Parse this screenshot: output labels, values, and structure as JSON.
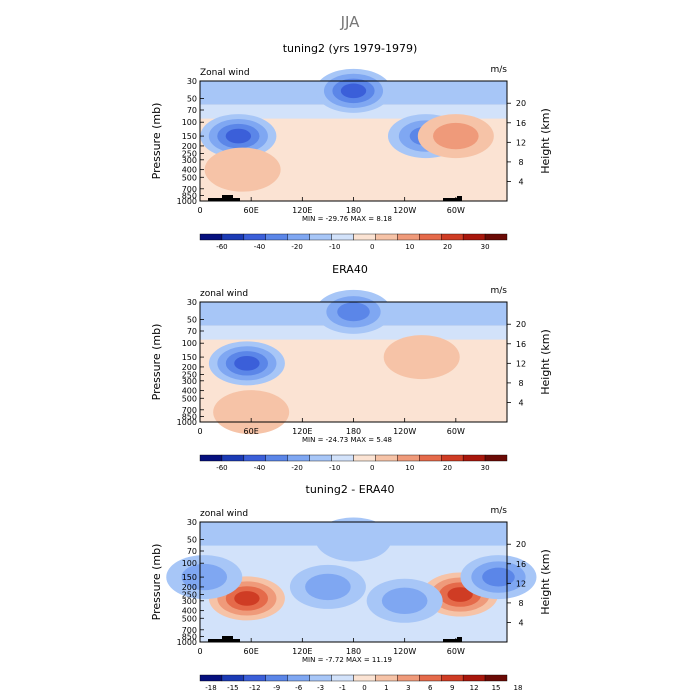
{
  "page_title": "JJA",
  "chart_data": [
    {
      "type": "heatmap",
      "title": "tuning2 (yrs 1979-1979)",
      "top_left_label": "Zonal wind",
      "top_right_label": "m/s",
      "ylabel": "Pressure (mb)",
      "y2label": "Height (km)",
      "x_ticks": [
        "0",
        "60E",
        "120E",
        "180",
        "120W",
        "60W"
      ],
      "x_range_deg_east": [
        0,
        360
      ],
      "y_ticks": [
        "30",
        "50",
        "70",
        "100",
        "150",
        "200",
        "250",
        "300",
        "400",
        "500",
        "700",
        "850",
        "1000"
      ],
      "y_range_mb": [
        30,
        1000
      ],
      "y_scale": "log",
      "y2_ticks": [
        "20",
        "16",
        "12",
        "8",
        "4"
      ],
      "stats": "MIN =  -29.76   MAX =   8.18",
      "colorbar_labels": [
        "-60",
        "-40",
        "-20",
        "-10",
        "0",
        "10",
        "20",
        "30"
      ],
      "colorbar_colors": [
        "#06107e",
        "#1b3bb5",
        "#3b5fd9",
        "#5b86e8",
        "#7fa7f2",
        "#a7c6f7",
        "#d2e2fa",
        "#fbe3d3",
        "#f6c3a7",
        "#ef9a7a",
        "#e56a4a",
        "#cf3c24",
        "#a8170c",
        "#6b0a06"
      ],
      "blobs": [
        {
          "lon": 45,
          "p": 150,
          "value": -29.76
        },
        {
          "lon": 50,
          "p": 400,
          "value": 6
        },
        {
          "lon": 265,
          "p": 150,
          "value": -12
        },
        {
          "lon": 300,
          "p": 150,
          "value": 8.18
        },
        {
          "lon": 180,
          "p": 40,
          "value": -15
        }
      ]
    },
    {
      "type": "heatmap",
      "title": "ERA40",
      "top_left_label": "zonal wind",
      "top_right_label": "m/s",
      "ylabel": "Pressure (mb)",
      "y2label": "Height (km)",
      "x_ticks": [
        "0",
        "60E",
        "120E",
        "180",
        "120W",
        "60W"
      ],
      "x_range_deg_east": [
        0,
        360
      ],
      "y_ticks": [
        "30",
        "50",
        "70",
        "100",
        "150",
        "200",
        "250",
        "300",
        "400",
        "500",
        "700",
        "850",
        "1000"
      ],
      "y_range_mb": [
        30,
        1000
      ],
      "y_scale": "log",
      "y2_ticks": [
        "20",
        "16",
        "12",
        "8",
        "4"
      ],
      "stats": "MIN =  -24.73   MAX =   5.48",
      "colorbar_labels": [
        "-60",
        "-40",
        "-20",
        "-10",
        "0",
        "10",
        "20",
        "30"
      ],
      "colorbar_colors": [
        "#06107e",
        "#1b3bb5",
        "#3b5fd9",
        "#5b86e8",
        "#7fa7f2",
        "#a7c6f7",
        "#d2e2fa",
        "#fbe3d3",
        "#f6c3a7",
        "#ef9a7a",
        "#e56a4a",
        "#cf3c24",
        "#a8170c",
        "#6b0a06"
      ],
      "blobs": [
        {
          "lon": 55,
          "p": 180,
          "value": -24.73
        },
        {
          "lon": 260,
          "p": 150,
          "value": 5.48
        },
        {
          "lon": 60,
          "p": 750,
          "value": 4
        },
        {
          "lon": 180,
          "p": 40,
          "value": -12
        }
      ]
    },
    {
      "type": "heatmap",
      "title": "tuning2 - ERA40",
      "top_left_label": "zonal wind",
      "top_right_label": "m/s",
      "ylabel": "Pressure (mb)",
      "y2label": "Height (km)",
      "x_ticks": [
        "0",
        "60E",
        "120E",
        "180",
        "120W",
        "60W"
      ],
      "x_range_deg_east": [
        0,
        360
      ],
      "y_ticks": [
        "30",
        "50",
        "70",
        "100",
        "150",
        "200",
        "250",
        "300",
        "400",
        "500",
        "700",
        "850",
        "1000"
      ],
      "y_range_mb": [
        30,
        1000
      ],
      "y_scale": "log",
      "y2_ticks": [
        "20",
        "16",
        "12",
        "8",
        "4"
      ],
      "stats": "MIN =   -7.72   MAX =  11.19",
      "colorbar_labels": [
        "-18",
        "-15",
        "-12",
        "-9",
        "-6",
        "-3",
        "-1",
        "0",
        "1",
        "3",
        "6",
        "9",
        "12",
        "15",
        "18"
      ],
      "colorbar_colors": [
        "#06107e",
        "#1b3bb5",
        "#3b5fd9",
        "#5b86e8",
        "#7fa7f2",
        "#a7c6f7",
        "#d2e2fa",
        "#fbe3d3",
        "#f6c3a7",
        "#ef9a7a",
        "#e56a4a",
        "#cf3c24",
        "#a8170c",
        "#6b0a06"
      ],
      "blobs": [
        {
          "lon": 55,
          "p": 280,
          "value": 11.19
        },
        {
          "lon": 305,
          "p": 250,
          "value": 10
        },
        {
          "lon": 350,
          "p": 150,
          "value": -7.72
        },
        {
          "lon": 5,
          "p": 150,
          "value": -6
        },
        {
          "lon": 150,
          "p": 200,
          "value": -5
        },
        {
          "lon": 240,
          "p": 300,
          "value": -5
        },
        {
          "lon": 180,
          "p": 50,
          "value": -3
        }
      ]
    }
  ]
}
